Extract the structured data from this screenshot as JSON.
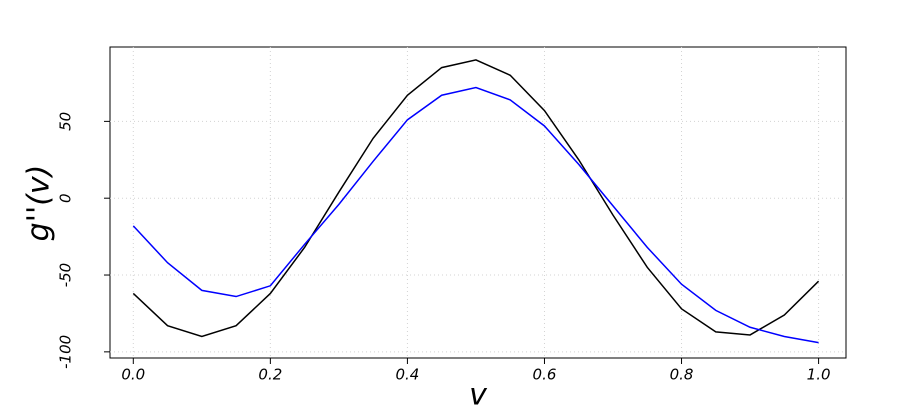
{
  "chart_data": {
    "type": "line",
    "x_label": "v",
    "y_label": "g''(v)",
    "x": [
      0,
      0.05,
      0.1,
      0.15,
      0.2,
      0.25,
      0.3,
      0.35,
      0.4,
      0.45,
      0.5,
      0.55,
      0.6,
      0.65,
      0.7,
      0.75,
      0.8,
      0.85,
      0.9,
      0.95,
      1.0
    ],
    "series": [
      {
        "color": "#000000",
        "values": [
          -62,
          -83,
          -90,
          -83,
          -62,
          -32,
          4,
          39,
          67,
          85,
          90,
          80,
          57,
          25,
          -11,
          -45,
          -72,
          -87,
          -89,
          -76,
          -54
        ]
      },
      {
        "color": "#0000ff",
        "values": [
          -18,
          -42,
          -60,
          -64,
          -57,
          -30,
          -4,
          24,
          51,
          67,
          72,
          64,
          47,
          22,
          -5,
          -32,
          -56,
          -73,
          -84,
          -90,
          -94
        ]
      }
    ],
    "xlim": [
      -0.034,
      1.04
    ],
    "ylim": [
      -104,
      98.4
    ],
    "xticks": [
      {
        "value": 0,
        "label": "0.0"
      },
      {
        "value": 0.2,
        "label": "0.2"
      },
      {
        "value": 0.4,
        "label": "0.4"
      },
      {
        "value": 0.6,
        "label": "0.6"
      },
      {
        "value": 0.8,
        "label": "0.8"
      },
      {
        "value": 1.0,
        "label": "1.0"
      }
    ],
    "yticks": [
      -100,
      -50,
      0,
      50
    ],
    "grid": true
  }
}
